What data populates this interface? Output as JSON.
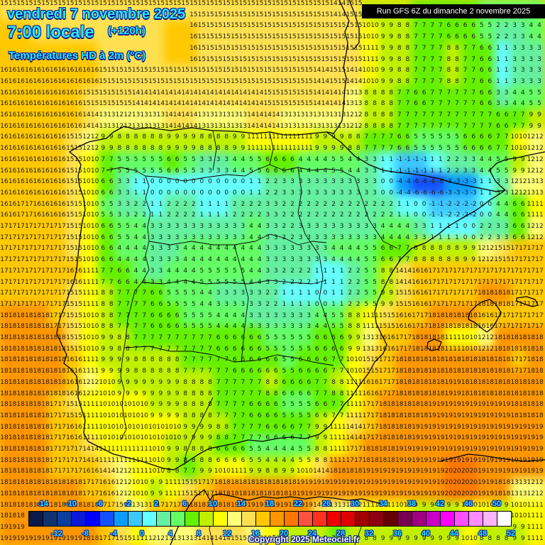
{
  "header": {
    "date_line": "vendredi 7 novembre 2025",
    "time_line": "7:00 locale",
    "lead_time": "(+120h)",
    "parameter": "Températures HD à 2m (°C)",
    "run_info": "Run GFS 6Z du dimanche 2 novembre 2025"
  },
  "footer": {
    "copyright": "Copyright 2025 Meteociel.fr"
  },
  "legend": {
    "top_labels": [
      "-14",
      "-10",
      "-6",
      "-2",
      "2",
      "6",
      "10",
      "14",
      "18",
      "22",
      "26",
      "30",
      "34",
      "38",
      "42",
      "46",
      "50"
    ],
    "bottom_labels": [
      "-12",
      "-8",
      "-4",
      "0",
      "4",
      "8",
      "12",
      "16",
      "20",
      "24",
      "28",
      "32",
      "36",
      "40",
      "44",
      "48",
      "52"
    ],
    "colors": [
      "#0a1a4a",
      "#0e3470",
      "#0a3ea0",
      "#0a1ad8",
      "#0000ff",
      "#1450ff",
      "#0a9cff",
      "#3cc8ff",
      "#64ffff",
      "#64f0a0",
      "#64ff64",
      "#64f000",
      "#c0f000",
      "#ffff00",
      "#ffff78",
      "#ffe050",
      "#ffc800",
      "#ff9600",
      "#ff7800",
      "#ff5040",
      "#ff3020",
      "#f00000",
      "#e00000",
      "#a00000",
      "#8c0010",
      "#640000",
      "#780050",
      "#a00080",
      "#c800c8",
      "#ff00ff",
      "#ff50ff",
      "#ff8cff",
      "#ffb4ff",
      "#ffffff"
    ]
  },
  "chart_data": {
    "type": "heatmap",
    "title": "Températures HD à 2m (°C) — vendredi 7 novembre 2025 7:00 locale (+120h), Run GFS 6Z du dimanche 2 novembre 2025",
    "region": "Iberian Peninsula, Balearic Islands, southwestern France, northern Morocco/Algeria",
    "unit": "°C",
    "color_scale_min": -14,
    "color_scale_max": 52,
    "grid_cols": 33,
    "grid_rows": 25,
    "rows": [
      "15 15 15 15 15 15 15 15 15 15 15 15 15 15 15 15 15 15 15 15 14 15 9 9 8 7 6 6 6 5 5 5 5",
      "16 16 15 15 15 15 15 15 15 15 16 16 15 15 15 15 15 15 15 15 15 15 10 9 8 7 7 6 6 5 2 3 4",
      "16 16 16 16 16 16 15 15 15 15 16 16 15 15 15 15 15 15 15 15 15 15 11 9 8 7 7 8 7 6 1 3 3",
      "16 16 16 16 16 16 15 15 15 15 15 15 15 15 15 15 15 15 15 14 15 14 10 9 8 7 7 8 7 6 1 3 3",
      "16 16 16 16 16 15 15 15 14 14 14 14 14 14 14 14 15 15 15 14 14 13 8 8 7 6 7 7 7 6 3 4 5",
      "16 16 16 16 16 14 13 12 13 13 14 14 13 13 13 14 14 13 13 13 13 12 8 8 7 7 7 7 7 7 6 7 9",
      "16 16 16 16 15 12 9 8 8 8 9 9 8 8 9 11 11 11 11 9 9 8 7 7 6 5 5 5 6 6 7 10 12",
      "16 16 16 16 15 10 7 5 5 5 6 5 3 3 4 5 6 6 4 4 5 4 3 1 -1 -1 1 2 3 4 5 9 12",
      "16 16 16 16 15 10 6 3 1 0 0 0 0 0 0 1 2 3 3 3 3 3 3 0 -4 -6 -6 -3 -3 1 3 12 13",
      "16 17 16 16 15 10 5 3 2 1 2 2 1 1 2 2 3 2 2 2 2 2 2 2 1 0 -1 -2 -2 0 4 6 11",
      "17 17 17 17 15 10 6 5 4 3 3 3 3 3 3 4 3 2 3 3 3 3 3 4 4 3 1 1 0 2 3 6 12",
      "17 17 17 17 15 10 6 4 4 3 3 4 4 4 4 4 3 3 3 3 4 4 5 6 7 8 8 8 9 12 15 17 17",
      "17 17 17 17 16 11 7 6 4 3 4 4 5 5 5 4 3 2 2 1 1 2 5 8 14 16 17 17 17 17 17 17 17",
      "17 17 17 17 15 11 8 7 7 6 5 5 4 3 3 3 2 1 1 0 1 2 5 9 15 16 17 17 17 18 18 17 17",
      "18 18 18 17 15 10 8 7 7 6 6 5 5 4 4 3 3 3 3 4 5 8 11 15 16 17 18 18 18 16 17 17 17",
      "18 18 18 18 15 10 9 8 7 7 7 7 7 6 6 6 5 5 5 6 6 9 13 16 17 18 18 11 10 12 18 18 18",
      "18 18 18 18 16 11 9 9 8 8 8 7 7 7 6 6 6 5 6 6 7 10 15 17 18 18 18 18 18 18 18 17 18",
      "18 18 18 18 16 12 10 9 9 9 9 8 8 7 7 7 8 6 6 7 8 11 16 17 18 18 18 19 18 18 18 18 18",
      "18 18 18 17 15 11 10 10 10 9 9 8 8 7 7 6 6 5 5 6 7 11 17 18 18 18 19 19 19 19 19 18 18",
      "18 18 18 17 16 11 10 10 10 10 10 9 9 8 7 7 6 6 7 9 11 14 17 18 18 19 19 19 19 19 19 19 19",
      "18 18 18 17 17 14 11 11 11 10 9 8 8 6 6 5 4 4 5 8 11 17 18 18 19 19 19 19 19 19 19 19 19",
      "18 18 18 17 17 16 14 12 11 10 8 7 9 10 11 9 8 9 10 14 18 18 19 19 19 19 19 20 20 19 19 19 19",
      "18 18 18 18 18 17 16 12 10 9 11 15 17 18 18 18 18 18 19 19 19 19 19 19 19 19 19 20 20 19 18 13 12",
      "18 18 18 18 18 18 17 15 13 17 17 18 18 18 19 19 19 19 19 14 13 12 11 11 10 9 9 9 10 10 9 10 11",
      "19 19 19 19 19 18 17 15 11 12 13 13 14 14 15 12 10 8 8 8 7 8 8 9 9 9 9 9 10 8 8 9 11"
    ]
  }
}
